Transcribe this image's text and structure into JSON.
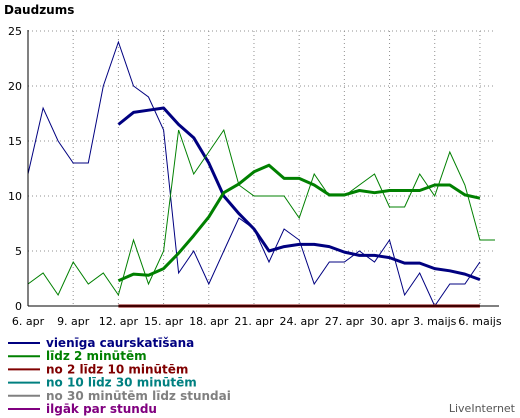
{
  "chart_data": {
    "type": "line",
    "ylabel": "Daudzums",
    "ylim": [
      0,
      25
    ],
    "yticks": [
      0,
      5,
      10,
      15,
      20,
      25
    ],
    "x_tick_labels": [
      "6. apr",
      "9. apr",
      "12. apr",
      "15. apr",
      "18. apr",
      "21. apr",
      "24. apr",
      "27. apr",
      "30. apr",
      "3. maijs",
      "6. maijs"
    ],
    "grid": true,
    "legend_position": "bottom-left",
    "series": [
      {
        "name": "vienīga caurskatīšana",
        "color": "#000080",
        "thin_x_start": 0,
        "thin": [
          12,
          18,
          15,
          13,
          13,
          20,
          24,
          20,
          19,
          16,
          3,
          5,
          2,
          5,
          8,
          7,
          4,
          7,
          6,
          2,
          4,
          4,
          5,
          4,
          6,
          1,
          3,
          0,
          2,
          2,
          4
        ],
        "trend_x_start": 6,
        "trend": [
          16.5,
          17.6,
          17.8,
          18.0,
          16.5,
          15.3,
          13.0,
          10.0,
          8.4,
          7.0,
          5.0,
          5.4,
          5.6,
          5.6,
          5.4,
          4.9,
          4.6,
          4.6,
          4.4,
          3.9,
          3.9,
          3.4,
          3.2,
          2.9,
          2.4
        ]
      },
      {
        "name": "līdz 2 minūtēm",
        "color": "#008000",
        "thin_x_start": 0,
        "thin": [
          2,
          3,
          1,
          4,
          2,
          3,
          1,
          6,
          2,
          5,
          16,
          12,
          14,
          16,
          11,
          10,
          10,
          10,
          8,
          12,
          10,
          10,
          11,
          12,
          9,
          9,
          12,
          10,
          14,
          11,
          6,
          6
        ],
        "trend_x_start": 6,
        "trend": [
          2.3,
          2.9,
          2.8,
          3.4,
          4.8,
          6.4,
          8.1,
          10.3,
          11.1,
          12.2,
          12.8,
          11.6,
          11.6,
          11.0,
          10.1,
          10.1,
          10.5,
          10.3,
          10.5,
          10.5,
          10.5,
          11.0,
          11.0,
          10.1,
          9.8
        ]
      },
      {
        "name": "no 2 līdz 10 minūtēm",
        "color": "#800000",
        "thin_x_start": 6,
        "thin": [],
        "trend_x_start": 6,
        "trend": [
          0,
          0,
          0,
          0,
          0,
          0,
          0,
          0,
          0,
          0,
          0,
          0,
          0,
          0,
          0,
          0,
          0,
          0,
          0,
          0,
          0,
          0,
          0,
          0,
          0
        ]
      },
      {
        "name": "no 10 līdz 30 minūtēm",
        "color": "#008080"
      },
      {
        "name": "no 30 minūtēm līdz stundai",
        "color": "#808080"
      },
      {
        "name": "ilgāk par stundu",
        "color": "#800080"
      }
    ]
  },
  "brand": "LiveInternet"
}
